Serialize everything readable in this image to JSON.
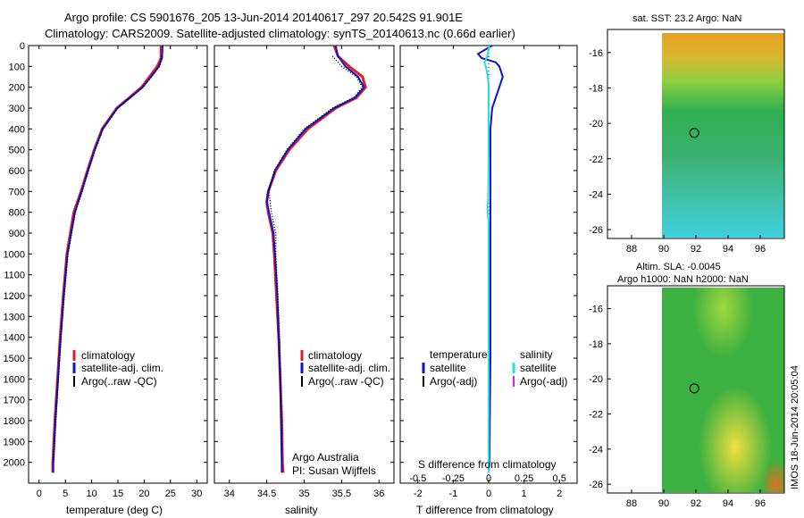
{
  "title": {
    "line1": "Argo profile: CS 5901676_205 13-Jun-2014 20140617_297 20.542S 91.901E",
    "line2": "Climatology: CARS2009. Satellite-adjusted climatology: synTS_20140613.nc (0.66d earlier)"
  },
  "colors": {
    "climatology": "#e02020",
    "satellite": "#1010d0",
    "argo": "#000000",
    "salinity_sat": "#20e0e0",
    "salinity_argo": "#e020e0"
  },
  "chart_data": [
    {
      "type": "line",
      "name": "temperature-profile",
      "xlabel": "temperature (deg C)",
      "ylabel": "",
      "xlim": [
        -2,
        32
      ],
      "ylim": [
        2100,
        0
      ],
      "xticks": [
        0,
        5,
        10,
        15,
        20,
        25,
        30
      ],
      "yticks": [
        0,
        100,
        200,
        300,
        400,
        500,
        600,
        700,
        800,
        900,
        1000,
        1100,
        1200,
        1300,
        1400,
        1500,
        1600,
        1700,
        1800,
        1900,
        2000
      ],
      "legend": [
        "climatology",
        "satellite-adj. clim.",
        "Argo(..raw -QC)"
      ],
      "series": [
        {
          "name": "climatology",
          "depth": [
            0,
            60,
            100,
            150,
            200,
            250,
            300,
            400,
            500,
            600,
            700,
            800,
            1000,
            1200,
            1400,
            1600,
            1800,
            2000,
            2050
          ],
          "values": [
            23.2,
            23.2,
            22.5,
            21.0,
            19.5,
            17.2,
            14.8,
            12.0,
            10.5,
            9.2,
            8.0,
            6.6,
            5.3,
            4.6,
            4.0,
            3.5,
            3.0,
            2.6,
            2.6
          ]
        },
        {
          "name": "satellite",
          "depth": [
            0,
            60,
            100,
            150,
            200,
            250,
            300,
            400,
            500,
            600,
            700,
            800,
            1000,
            1200,
            1400,
            1600,
            1800,
            2000,
            2050
          ],
          "values": [
            23.5,
            23.4,
            22.8,
            21.3,
            19.7,
            17.3,
            14.9,
            12.1,
            10.6,
            9.3,
            8.1,
            6.8,
            5.4,
            4.7,
            4.1,
            3.6,
            3.1,
            2.7,
            2.7
          ]
        },
        {
          "name": "argo",
          "depth": [
            50,
            100,
            150,
            200,
            250,
            300,
            400,
            500,
            600,
            700,
            800,
            900,
            1000,
            1200,
            1400,
            1600,
            1800,
            2000
          ],
          "values": [
            23.3,
            22.9,
            21.4,
            19.8,
            17.4,
            15.0,
            12.2,
            10.7,
            9.4,
            8.2,
            6.9,
            6.2,
            5.5,
            4.8,
            4.2,
            3.7,
            3.2,
            2.8
          ]
        }
      ]
    },
    {
      "type": "line",
      "name": "salinity-profile",
      "xlabel": "salinity",
      "xlim": [
        33.8,
        36.2
      ],
      "ylim": [
        2100,
        0
      ],
      "xticks": [
        34,
        34.5,
        35,
        35.5,
        36
      ],
      "legend": [
        "climatology",
        "satellite-adj. clim.",
        "Argo(..raw -QC)"
      ],
      "annotation": [
        "Argo Australia",
        "PI: Susan Wijffels"
      ],
      "series": [
        {
          "name": "climatology",
          "depth": [
            0,
            50,
            100,
            150,
            200,
            250,
            300,
            400,
            500,
            600,
            700,
            750,
            800,
            900,
            1000,
            1200,
            1400,
            1600,
            1800,
            2000,
            2050
          ],
          "values": [
            35.4,
            35.45,
            35.6,
            35.78,
            35.82,
            35.7,
            35.42,
            35.05,
            34.8,
            34.62,
            34.52,
            34.5,
            34.52,
            34.58,
            34.6,
            34.63,
            34.66,
            34.68,
            34.7,
            34.71,
            34.72
          ]
        },
        {
          "name": "satellite",
          "depth": [
            0,
            50,
            100,
            150,
            200,
            250,
            300,
            400,
            500,
            600,
            700,
            750,
            800,
            900,
            1000,
            1200,
            1400,
            1600,
            1800,
            2000,
            2050
          ],
          "values": [
            35.42,
            35.45,
            35.55,
            35.72,
            35.8,
            35.68,
            35.4,
            35.02,
            34.78,
            34.61,
            34.52,
            34.5,
            34.53,
            34.59,
            34.61,
            34.64,
            34.66,
            34.68,
            34.69,
            34.7,
            34.7
          ]
        },
        {
          "name": "argo",
          "depth": [
            50,
            100,
            150,
            200,
            250,
            300,
            400,
            500,
            600,
            700,
            800,
            900,
            1000,
            1200,
            1400,
            1600,
            1800,
            2000
          ],
          "values": [
            35.38,
            35.5,
            35.7,
            35.78,
            35.66,
            35.38,
            35.0,
            34.77,
            34.6,
            34.53,
            34.56,
            34.62,
            34.62,
            34.65,
            34.67,
            34.68,
            34.7,
            34.7
          ]
        }
      ]
    },
    {
      "type": "line",
      "name": "difference-profile",
      "xlabel": "T difference from climatology",
      "xlabel2": "S difference from climatology",
      "xlim": [
        -2.5,
        2.5
      ],
      "ylim": [
        2100,
        0
      ],
      "xticks": [
        -2,
        -1,
        0,
        1,
        2
      ],
      "xticks_s": [
        "-0.5",
        "-0.25",
        "0",
        "0.25",
        "0.5"
      ],
      "legend_headers": [
        "temperature",
        "salinity"
      ],
      "legend_t": [
        "satellite",
        "Argo(-adj)"
      ],
      "legend_s": [
        "satellite",
        "Argo(-adj)"
      ],
      "series": [
        {
          "name": "temperature-satellite",
          "depth": [
            0,
            40,
            60,
            80,
            100,
            150,
            200,
            250,
            300,
            400,
            500,
            700,
            800,
            1000,
            1500,
            2000,
            2050
          ],
          "values": [
            0.1,
            -0.3,
            -0.2,
            0.2,
            0.3,
            0.4,
            0.3,
            0.2,
            0.1,
            0.05,
            0.05,
            0.05,
            0.05,
            0.05,
            0.05,
            0.02,
            0.0
          ]
        },
        {
          "name": "salinity-satellite",
          "depth": [
            0,
            60,
            80,
            100,
            150,
            200,
            300,
            400,
            500,
            700,
            800,
            850,
            900,
            1000,
            1500,
            2000,
            2050
          ],
          "values": [
            0.02,
            -0.05,
            -0.12,
            -0.08,
            -0.02,
            0.0,
            0.0,
            0.0,
            0.0,
            -0.01,
            -0.03,
            0.0,
            0.0,
            0.0,
            0.0,
            0.0,
            0.0
          ]
        }
      ]
    },
    {
      "type": "heatmap",
      "name": "sst-map",
      "title": "sat. SST: 23.2  Argo: NaN",
      "xticks": [
        88,
        90,
        92,
        94,
        96
      ],
      "yticks": [
        -16,
        -18,
        -20,
        -22,
        -24,
        -26
      ],
      "xlim": [
        86.5,
        97.5
      ],
      "ylim": [
        -26.5,
        -14.7
      ],
      "marker": [
        91.9,
        -20.54
      ]
    },
    {
      "type": "heatmap",
      "name": "sla-map",
      "title": "Altim. SLA: -0.0045",
      "subtitle": "Argo h1000: NaN h2000: NaN",
      "xticks": [
        88,
        90,
        92,
        94,
        96
      ],
      "yticks": [
        -16,
        -18,
        -20,
        -22,
        -24,
        -26
      ],
      "xlim": [
        86.5,
        97.5
      ],
      "ylim": [
        -26.5,
        -14.7
      ],
      "marker": [
        91.9,
        -20.54
      ]
    }
  ],
  "footer": {
    "stamp": "IMOS 18-Jun-2014 20:05:04"
  }
}
